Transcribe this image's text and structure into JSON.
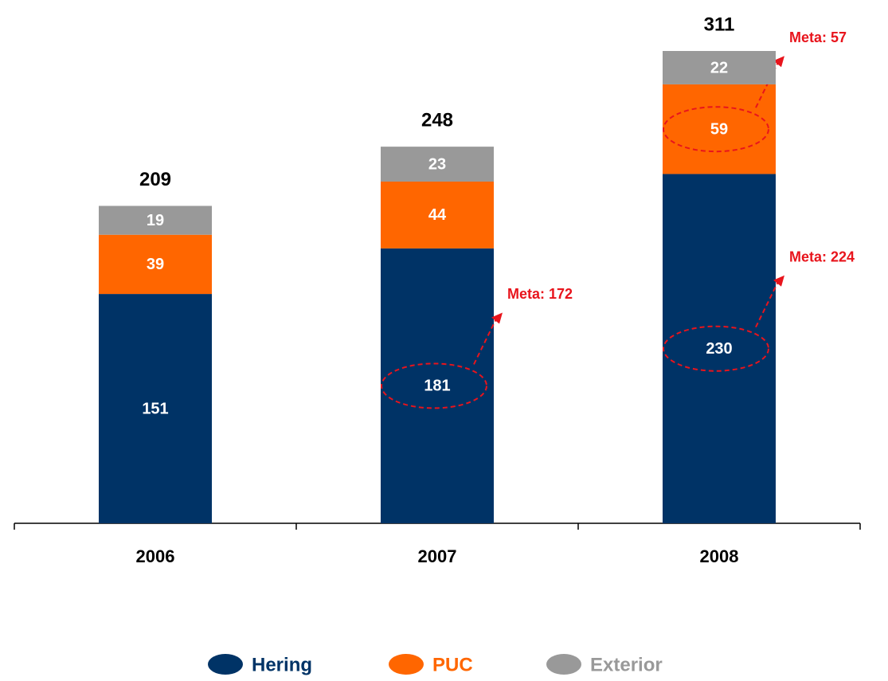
{
  "chart_data": {
    "type": "stacked_bar",
    "categories": [
      "2006",
      "2007",
      "2008"
    ],
    "series": [
      {
        "name": "Hering",
        "color": "#003366",
        "values": [
          151,
          181,
          230
        ],
        "annotations": [
          null,
          "Meta: 172",
          "Meta: 224"
        ]
      },
      {
        "name": "PUC",
        "color": "#ff6600",
        "values": [
          39,
          44,
          59
        ],
        "annotations": [
          null,
          null,
          "Meta: 57"
        ]
      },
      {
        "name": "Exterior",
        "color": "#999999",
        "values": [
          19,
          23,
          22
        ]
      }
    ],
    "totals": [
      209,
      248,
      311
    ],
    "annotation_color": "#e8141c",
    "legend": "bottom"
  }
}
